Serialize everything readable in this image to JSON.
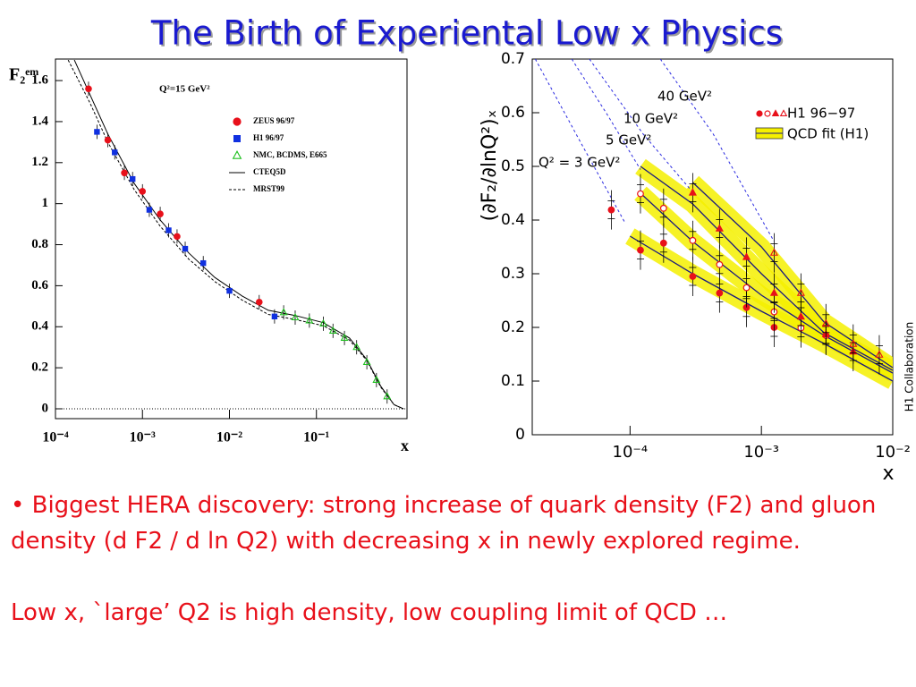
{
  "title": "The Birth of Experiental Low x Physics",
  "bullets": [
    "• Biggest HERA discovery: strong increase of quark density (F2) and gluon density (d F2 / d ln Q2) with decreasing x in newly explored regime.",
    "Low x, `large’ Q2 is high density, low coupling limit of QCD …"
  ],
  "chart_data": [
    {
      "type": "scatter",
      "log_x": true,
      "annotation": "Q²=15 GeV²",
      "y_label": "F₂ᵉᵐ",
      "x_label": "x",
      "xlim": [
        0.0001,
        1.1
      ],
      "ylim": [
        -0.048,
        1.705
      ],
      "xticks": [
        {
          "value": 0.0001,
          "label": "10⁻⁴"
        },
        {
          "value": 0.001,
          "label": "10⁻³"
        },
        {
          "value": 0.01,
          "label": "10⁻²"
        },
        {
          "value": 0.1,
          "label": "10⁻¹"
        }
      ],
      "yticks": [
        0,
        0.2,
        0.4,
        0.6,
        0.8,
        1,
        1.2,
        1.4,
        1.6
      ],
      "series": [
        {
          "name": "ZEUS 96/97",
          "color": "#e8101a",
          "marker": "circle",
          "x": [
            0.00024,
            0.0004,
            0.00062,
            0.001,
            0.0016,
            0.0025,
            0.022
          ],
          "values": [
            1.56,
            1.31,
            1.15,
            1.06,
            0.95,
            0.84,
            0.52
          ]
        },
        {
          "name": "H1 96/97",
          "color": "#1030e0",
          "marker": "square",
          "x": [
            0.0003,
            0.00048,
            0.00077,
            0.0012,
            0.002,
            0.0031,
            0.005,
            0.01,
            0.033
          ],
          "values": [
            1.35,
            1.25,
            1.12,
            0.97,
            0.87,
            0.78,
            0.71,
            0.575,
            0.45
          ]
        },
        {
          "name": "NMC, BCDMS, E665",
          "color": "#20c020",
          "marker": "triangle-open",
          "x": [
            0.042,
            0.057,
            0.083,
            0.12,
            0.155,
            0.21,
            0.29,
            0.38,
            0.49,
            0.65
          ],
          "values": [
            0.47,
            0.445,
            0.43,
            0.415,
            0.38,
            0.345,
            0.3,
            0.227,
            0.14,
            0.06
          ]
        },
        {
          "name": "CTEQ5D",
          "color": "#000000",
          "line": "solid",
          "x": [
            0.000165,
            0.00025,
            0.0004,
            0.0008,
            0.0016,
            0.0034,
            0.0068,
            0.014,
            0.028,
            0.057,
            0.12,
            0.24,
            0.38,
            0.55,
            0.78,
            1
          ],
          "values": [
            1.7,
            1.53,
            1.34,
            1.1,
            0.92,
            0.76,
            0.64,
            0.55,
            0.48,
            0.455,
            0.42,
            0.345,
            0.24,
            0.11,
            0.02,
            0
          ]
        },
        {
          "name": "MRST99",
          "color": "#000000",
          "line": "dashed",
          "x": [
            0.00014,
            0.00025,
            0.0004,
            0.0008,
            0.0016,
            0.0034,
            0.0068,
            0.014,
            0.028,
            0.057,
            0.12,
            0.24,
            0.38,
            0.55,
            0.78,
            1
          ],
          "values": [
            1.7,
            1.49,
            1.3,
            1.07,
            0.89,
            0.73,
            0.62,
            0.53,
            0.46,
            0.435,
            0.405,
            0.335,
            0.235,
            0.105,
            0.02,
            0
          ]
        }
      ]
    },
    {
      "type": "scatter",
      "log_x": true,
      "y_label": "(∂F₂/∂lnQ²)ₓ",
      "x_label": "x",
      "side_note": "H1 Collaboration",
      "xlim": [
        1.8e-05,
        0.01
      ],
      "ylim": [
        0,
        0.7
      ],
      "xticks": [
        {
          "value": 0.0001,
          "label": "10⁻⁴"
        },
        {
          "value": 0.001,
          "label": "10⁻³"
        },
        {
          "value": 0.01,
          "label": "10⁻²"
        }
      ],
      "yticks": [
        0,
        0.1,
        0.2,
        0.3,
        0.4,
        0.5,
        0.6,
        0.7
      ],
      "legend": {
        "data": "H1 96−97",
        "fit": "QCD fit (H1)"
      },
      "data_color": "#e8101a",
      "fit_color": "#1a1a80",
      "band_color": "#f5f000",
      "extrapolation_color": "#2a2ae0",
      "curves": [
        {
          "name": "Q² = 3 GeV²",
          "marker": "circle",
          "x": [
            7.2e-05,
            0.00012,
            0.00018,
            0.0003,
            0.00048,
            0.00077,
            0.00125
          ],
          "values": [
            0.419,
            0.344,
            0.357,
            0.295,
            0.264,
            0.237,
            0.2
          ],
          "fit_x": [
            0.0001,
            0.0003,
            0.001,
            0.003,
            0.01
          ],
          "fit_values": [
            0.37,
            0.3,
            0.23,
            0.17,
            0.1
          ],
          "ext_x": [
            1.9e-05,
            4.2e-05,
            9.2e-05
          ],
          "ext_values": [
            0.7,
            0.545,
            0.394
          ]
        },
        {
          "name": "5 GeV²",
          "marker": "circle-open",
          "x": [
            0.00012,
            0.00018,
            0.0003,
            0.00048,
            0.00077,
            0.00125,
            0.002,
            0.0031
          ],
          "values": [
            0.449,
            0.422,
            0.362,
            0.317,
            0.274,
            0.229,
            0.199,
            0.185
          ],
          "fit_x": [
            0.00012,
            0.0003,
            0.001,
            0.003,
            0.01
          ],
          "fit_values": [
            0.45,
            0.36,
            0.26,
            0.185,
            0.115
          ],
          "ext_x": [
            3.6e-05,
            6.8e-05,
            0.00012
          ],
          "ext_values": [
            0.7,
            0.594,
            0.494
          ]
        },
        {
          "name": "10 GeV²",
          "marker": "triangle",
          "x": [
            0.0003,
            0.00048,
            0.00077,
            0.00125,
            0.002,
            0.0031,
            0.005
          ],
          "values": [
            0.451,
            0.384,
            0.331,
            0.264,
            0.22,
            0.187,
            0.155
          ],
          "fit_x": [
            0.00012,
            0.0003,
            0.001,
            0.003,
            0.01
          ],
          "fit_values": [
            0.5,
            0.43,
            0.3,
            0.19,
            0.12
          ],
          "ext_x": [
            4.9e-05,
            0.000126,
            0.0003
          ],
          "ext_values": [
            0.7,
            0.56,
            0.452
          ]
        },
        {
          "name": "40 GeV²",
          "marker": "triangle-open",
          "x": [
            0.00125,
            0.002,
            0.0031,
            0.005,
            0.0079
          ],
          "values": [
            0.339,
            0.264,
            0.207,
            0.169,
            0.149
          ],
          "fit_x": [
            0.0003,
            0.001,
            0.003,
            0.01
          ],
          "fit_values": [
            0.47,
            0.35,
            0.21,
            0.125
          ],
          "ext_x": [
            0.00017,
            0.00043,
            0.00125
          ],
          "ext_values": [
            0.7,
            0.56,
            0.36
          ]
        }
      ]
    }
  ]
}
